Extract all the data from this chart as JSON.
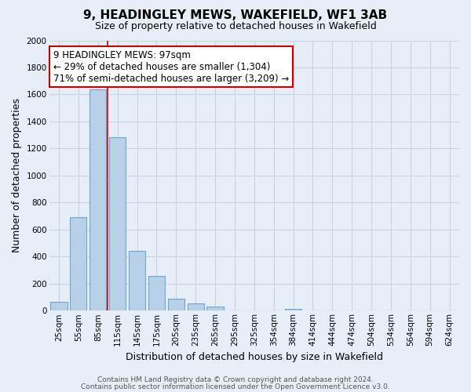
{
  "title": "9, HEADINGLEY MEWS, WAKEFIELD, WF1 3AB",
  "subtitle": "Size of property relative to detached houses in Wakefield",
  "xlabel": "Distribution of detached houses by size in Wakefield",
  "ylabel": "Number of detached properties",
  "bar_labels": [
    "25sqm",
    "55sqm",
    "85sqm",
    "115sqm",
    "145sqm",
    "175sqm",
    "205sqm",
    "235sqm",
    "265sqm",
    "295sqm",
    "325sqm",
    "354sqm",
    "384sqm",
    "414sqm",
    "444sqm",
    "474sqm",
    "504sqm",
    "534sqm",
    "564sqm",
    "594sqm",
    "624sqm"
  ],
  "bar_values": [
    65,
    690,
    1640,
    1285,
    440,
    255,
    90,
    52,
    28,
    0,
    0,
    0,
    15,
    0,
    0,
    0,
    0,
    0,
    0,
    0,
    0
  ],
  "bar_color": "#b8d0e8",
  "bar_edge_color": "#6ea6cc",
  "vline_color": "#cc0000",
  "vline_x_index": 2,
  "annotation_line1": "9 HEADINGLEY MEWS: 97sqm",
  "annotation_line2": "← 29% of detached houses are smaller (1,304)",
  "annotation_line3": "71% of semi-detached houses are larger (3,209) →",
  "annotation_box_edgecolor": "#cc0000",
  "annotation_box_facecolor": "#ffffff",
  "ylim": [
    0,
    2000
  ],
  "yticks": [
    0,
    200,
    400,
    600,
    800,
    1000,
    1200,
    1400,
    1600,
    1800,
    2000
  ],
  "footer_line1": "Contains HM Land Registry data © Crown copyright and database right 2024.",
  "footer_line2": "Contains public sector information licensed under the Open Government Licence v3.0.",
  "bg_color": "#e8eef8",
  "plot_bg_color": "#e8eef8",
  "grid_color": "#c8d4e4",
  "title_fontsize": 11,
  "subtitle_fontsize": 9,
  "axis_label_fontsize": 9,
  "tick_fontsize": 7.5,
  "annotation_fontsize": 8.5,
  "footer_fontsize": 6.5
}
